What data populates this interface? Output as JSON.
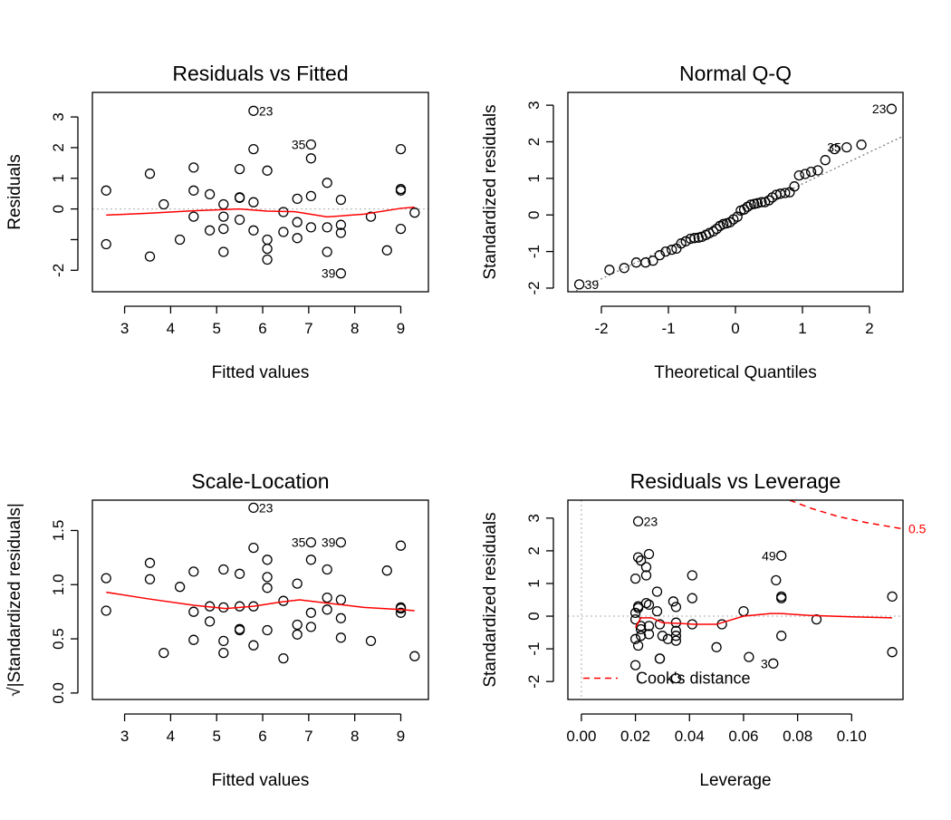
{
  "chart_data": [
    {
      "panel": "residuals-vs-fitted",
      "type": "scatter",
      "title": "Residuals vs Fitted",
      "xlabel": "Fitted values",
      "ylabel": "Residuals",
      "xlim": [
        2.3,
        9.6
      ],
      "ylim": [
        -2.7,
        3.8
      ],
      "xticks": [
        3,
        4,
        5,
        6,
        7,
        8,
        9
      ],
      "yticks": [
        -2,
        -1,
        0,
        1,
        2,
        3
      ],
      "ytick_labels": [
        "-2",
        "",
        "0",
        "1",
        "2",
        "3"
      ],
      "refline": {
        "y": 0,
        "style": "dotted",
        "color": "#bebebe"
      },
      "smooth": {
        "color": "#ff0000",
        "x": [
          2.6,
          3.5,
          4.5,
          5.5,
          6.1,
          6.7,
          7.4,
          8.2,
          9.0,
          9.3
        ],
        "y": [
          -0.2,
          -0.14,
          -0.06,
          0.0,
          -0.07,
          -0.09,
          -0.26,
          -0.17,
          0.02,
          0.06
        ]
      },
      "points": {
        "x": [
          2.6,
          2.6,
          3.55,
          3.55,
          3.85,
          4.2,
          4.5,
          4.5,
          4.5,
          4.85,
          4.85,
          5.15,
          5.15,
          5.15,
          5.15,
          5.5,
          5.5,
          5.5,
          5.5,
          5.8,
          5.8,
          5.8,
          5.8,
          6.1,
          6.1,
          6.1,
          6.1,
          6.45,
          6.45,
          6.75,
          6.75,
          6.75,
          7.05,
          7.05,
          7.05,
          7.05,
          7.4,
          7.4,
          7.4,
          7.7,
          7.7,
          7.7,
          7.7,
          8.35,
          8.7,
          9.0,
          9.0,
          9.0,
          9.0,
          9.3
        ],
        "y": [
          0.6,
          -1.15,
          1.15,
          -1.55,
          0.15,
          -1.0,
          1.35,
          0.6,
          -0.25,
          0.48,
          -0.7,
          0.15,
          -0.25,
          -0.65,
          -1.4,
          1.3,
          0.38,
          0.36,
          -0.35,
          3.2,
          1.95,
          0.22,
          -0.7,
          1.25,
          -1.0,
          -1.65,
          -1.3,
          -0.1,
          -0.75,
          0.33,
          -0.43,
          -0.95,
          2.1,
          1.65,
          0.42,
          -0.6,
          0.85,
          -0.6,
          -1.4,
          0.3,
          -0.52,
          -0.78,
          -2.1,
          -0.25,
          -1.35,
          1.95,
          0.65,
          0.6,
          -0.65,
          -0.12
        ]
      },
      "labels": [
        {
          "text": "23",
          "x": 5.8,
          "y": 3.2,
          "pos": "right"
        },
        {
          "text": "35",
          "x": 7.05,
          "y": 2.1,
          "pos": "left"
        },
        {
          "text": "39",
          "x": 7.7,
          "y": -2.1,
          "pos": "left"
        }
      ]
    },
    {
      "panel": "normal-qq",
      "type": "scatter",
      "title": "Normal Q-Q",
      "xlabel": "Theoretical Quantiles",
      "ylabel": "Standardized residuals",
      "xlim": [
        -2.5,
        2.5
      ],
      "ylim": [
        -2.1,
        3.35
      ],
      "xticks": [
        -2,
        -1,
        0,
        1,
        2
      ],
      "yticks": [
        -2,
        -1,
        0,
        1,
        2,
        3
      ],
      "refline": {
        "x": [
          -2.5,
          2.5
        ],
        "y": [
          -2.18,
          2.15
        ],
        "style": "dotted",
        "color": "#7f7f7f"
      },
      "points": {
        "x": [
          -2.33,
          -1.88,
          -1.66,
          -1.48,
          -1.34,
          -1.23,
          -1.13,
          -1.04,
          -0.95,
          -0.88,
          -0.81,
          -0.74,
          -0.67,
          -0.61,
          -0.55,
          -0.5,
          -0.44,
          -0.39,
          -0.33,
          -0.28,
          -0.23,
          -0.18,
          -0.13,
          -0.08,
          -0.03,
          0.03,
          0.08,
          0.13,
          0.18,
          0.23,
          0.28,
          0.33,
          0.39,
          0.44,
          0.5,
          0.55,
          0.61,
          0.67,
          0.74,
          0.81,
          0.88,
          0.95,
          1.04,
          1.13,
          1.23,
          1.34,
          1.48,
          1.66,
          1.88,
          2.33
        ],
        "y": [
          -1.9,
          -1.5,
          -1.45,
          -1.3,
          -1.3,
          -1.25,
          -1.1,
          -1.0,
          -0.95,
          -0.92,
          -0.78,
          -0.72,
          -0.65,
          -0.63,
          -0.62,
          -0.6,
          -0.55,
          -0.5,
          -0.45,
          -0.38,
          -0.3,
          -0.25,
          -0.23,
          -0.2,
          -0.12,
          -0.05,
          0.12,
          0.15,
          0.22,
          0.28,
          0.3,
          0.32,
          0.35,
          0.35,
          0.4,
          0.48,
          0.55,
          0.58,
          0.6,
          0.62,
          0.78,
          1.08,
          1.12,
          1.18,
          1.22,
          1.5,
          1.8,
          1.85,
          1.92,
          2.9
        ]
      },
      "labels": [
        {
          "text": "23",
          "x": 2.33,
          "y": 2.9,
          "pos": "left"
        },
        {
          "text": "35",
          "x": 1.66,
          "y": 1.85,
          "pos": "left"
        },
        {
          "text": "39",
          "x": -2.33,
          "y": -1.9,
          "pos": "right"
        }
      ]
    },
    {
      "panel": "scale-location",
      "type": "scatter",
      "title": "Scale-Location",
      "xlabel": "Fitted values",
      "ylabel": "√|Standardized residuals|",
      "xlim": [
        2.3,
        9.6
      ],
      "ylim": [
        -0.06,
        1.78
      ],
      "xticks": [
        3,
        4,
        5,
        6,
        7,
        8,
        9
      ],
      "yticks": [
        0.0,
        0.5,
        1.0,
        1.5
      ],
      "ytick_labels": [
        "0.0",
        "0.5",
        "1.0",
        "1.5"
      ],
      "smooth": {
        "color": "#ff0000",
        "x": [
          2.6,
          3.5,
          4.5,
          5.2,
          5.8,
          6.4,
          6.8,
          7.4,
          8.2,
          9.0,
          9.3
        ],
        "y": [
          0.93,
          0.87,
          0.81,
          0.78,
          0.8,
          0.84,
          0.86,
          0.83,
          0.79,
          0.77,
          0.76
        ]
      },
      "points": {
        "x": [
          2.6,
          2.6,
          3.55,
          3.55,
          3.85,
          4.2,
          4.5,
          4.5,
          4.5,
          4.85,
          4.85,
          5.15,
          5.15,
          5.15,
          5.15,
          5.5,
          5.5,
          5.5,
          5.5,
          5.8,
          5.8,
          5.8,
          5.8,
          6.1,
          6.1,
          6.1,
          6.1,
          6.45,
          6.45,
          6.75,
          6.75,
          6.75,
          7.05,
          7.05,
          7.05,
          7.05,
          7.4,
          7.4,
          7.4,
          7.7,
          7.7,
          7.7,
          7.7,
          8.35,
          8.7,
          9.0,
          9.0,
          9.0,
          9.0,
          9.3
        ],
        "y": [
          1.06,
          0.76,
          1.2,
          1.05,
          0.37,
          0.98,
          1.12,
          0.75,
          0.49,
          0.8,
          0.66,
          1.14,
          0.79,
          0.48,
          0.37,
          1.1,
          0.59,
          0.58,
          0.8,
          1.71,
          1.34,
          0.8,
          0.44,
          1.23,
          1.07,
          0.97,
          0.58,
          0.85,
          0.32,
          1.01,
          0.63,
          0.54,
          1.39,
          1.23,
          0.74,
          0.61,
          1.14,
          0.88,
          0.77,
          0.86,
          0.69,
          0.51,
          1.39,
          0.48,
          1.13,
          1.36,
          0.79,
          0.78,
          0.74,
          0.34
        ]
      },
      "labels": [
        {
          "text": "23",
          "x": 5.8,
          "y": 1.71,
          "pos": "right"
        },
        {
          "text": "35",
          "x": 7.05,
          "y": 1.39,
          "pos": "left"
        },
        {
          "text": "39",
          "x": 7.7,
          "y": 1.39,
          "pos": "left"
        }
      ]
    },
    {
      "panel": "residuals-vs-leverage",
      "type": "scatter",
      "title": "Residuals vs Leverage",
      "xlabel": "Leverage",
      "ylabel": "Standardized residuals",
      "xlim": [
        -0.005,
        0.119
      ],
      "ylim": [
        -2.55,
        3.55
      ],
      "xticks": [
        0.0,
        0.02,
        0.04,
        0.06,
        0.08,
        0.1
      ],
      "xtick_labels": [
        "0.00",
        "0.02",
        "0.04",
        "0.06",
        "0.08",
        "0.10"
      ],
      "yticks": [
        -2,
        -1,
        0,
        1,
        2,
        3
      ],
      "refline_h": {
        "y": 0,
        "style": "dotted",
        "color": "#bebebe"
      },
      "refline_v": {
        "x": 0,
        "style": "dotted",
        "color": "#bebebe"
      },
      "smooth": {
        "color": "#ff0000",
        "x": [
          0.02,
          0.022,
          0.026,
          0.03,
          0.036,
          0.042,
          0.05,
          0.06,
          0.07,
          0.074,
          0.085,
          0.1,
          0.115
        ],
        "y": [
          -0.35,
          -0.05,
          -0.05,
          -0.2,
          -0.22,
          -0.25,
          -0.25,
          0.0,
          0.08,
          0.08,
          0.02,
          -0.02,
          -0.05
        ]
      },
      "cooks": {
        "name": "Cook's distance",
        "level_label": "0.5",
        "color": "#ff0000",
        "x": [
          0.077,
          0.085,
          0.095,
          0.105,
          0.119
        ],
        "y": [
          3.55,
          3.3,
          3.05,
          2.87,
          2.67
        ]
      },
      "points": {
        "x": [
          0.021,
          0.021,
          0.022,
          0.025,
          0.024,
          0.02,
          0.02,
          0.021,
          0.021,
          0.02,
          0.022,
          0.022,
          0.024,
          0.024,
          0.025,
          0.025,
          0.025,
          0.022,
          0.021,
          0.02,
          0.02,
          0.028,
          0.028,
          0.029,
          0.029,
          0.029,
          0.03,
          0.032,
          0.034,
          0.035,
          0.035,
          0.035,
          0.035,
          0.035,
          0.035,
          0.041,
          0.041,
          0.041,
          0.05,
          0.052,
          0.06,
          0.062,
          0.071,
          0.072,
          0.074,
          0.074,
          0.074,
          0.074,
          0.087,
          0.115,
          0.115
        ],
        "y": [
          2.9,
          1.8,
          1.7,
          1.9,
          1.5,
          1.15,
          0.1,
          0.25,
          0.3,
          -0.1,
          -0.3,
          -0.4,
          1.25,
          0.4,
          0.35,
          -0.3,
          -0.55,
          -0.6,
          -0.9,
          -0.7,
          -1.5,
          0.75,
          0.15,
          -1.3,
          -1.3,
          -0.25,
          -0.6,
          -0.7,
          0.45,
          0.28,
          -0.2,
          -0.45,
          -0.6,
          -0.75,
          -1.9,
          1.25,
          0.55,
          -0.25,
          -0.95,
          -0.25,
          0.15,
          -1.25,
          -1.45,
          1.1,
          1.85,
          0.6,
          0.55,
          -0.6,
          -0.1,
          0.6,
          -1.1
        ]
      },
      "labels": [
        {
          "text": "23",
          "x": 0.021,
          "y": 2.9,
          "pos": "right"
        },
        {
          "text": "49",
          "x": 0.074,
          "y": 1.85,
          "pos": "left"
        },
        {
          "text": "3",
          "x": 0.071,
          "y": -1.45,
          "pos": "left"
        }
      ]
    }
  ]
}
